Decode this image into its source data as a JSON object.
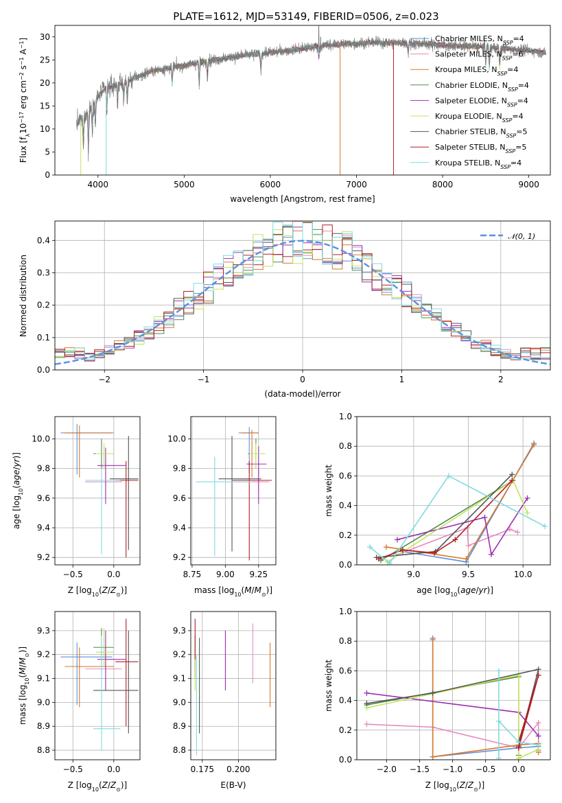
{
  "title": "PLATE=1612, MJD=53149, FIBERID=0506, z=0.023",
  "colors": {
    "Chabrier MILES": "#5f8fd6",
    "Salpeter MILES": "#e58bbd",
    "Kroupa MILES": "#d9772a",
    "Chabrier ELODIE": "#4e8b4e",
    "Salpeter ELODIE": "#9b30b0",
    "Kroupa ELODIE": "#c2e35a",
    "Chabrier STELIB": "#555555",
    "Salpeter STELIB": "#b01e23",
    "Kroupa STELIB": "#7fdbe0"
  },
  "chart_data": [
    {
      "type": "line",
      "panel": "spectrum",
      "xlabel": "wavelength [Angstrom, rest frame]",
      "ylabel": "Flux [f_λ 10^-17 erg cm^-2 s^-1 A^-1]",
      "xlim": [
        3500,
        9250
      ],
      "ylim": [
        0,
        32.5
      ],
      "xticks": [
        "4000",
        "5000",
        "6000",
        "7000",
        "8000",
        "9000"
      ],
      "yticks": [
        "0",
        "5",
        "10",
        "15",
        "20",
        "25",
        "30"
      ],
      "legend_position": "right",
      "legend": [
        {
          "name": "Chabrier MILES",
          "nssp": "4"
        },
        {
          "name": "Salpeter MILES",
          "nssp": "6"
        },
        {
          "name": "Kroupa MILES",
          "nssp": "4"
        },
        {
          "name": "Chabrier ELODIE",
          "nssp": "4"
        },
        {
          "name": "Salpeter ELODIE",
          "nssp": "4"
        },
        {
          "name": "Kroupa ELODIE",
          "nssp": "4"
        },
        {
          "name": "Chabrier STELIB",
          "nssp": "5"
        },
        {
          "name": "Salpeter STELIB",
          "nssp": "5"
        },
        {
          "name": "Kroupa STELIB",
          "nssp": "4"
        }
      ],
      "continuum": [
        [
          3750,
          11
        ],
        [
          3900,
          14
        ],
        [
          4000,
          17
        ],
        [
          4100,
          19
        ],
        [
          4300,
          20
        ],
        [
          4600,
          22.5
        ],
        [
          4900,
          23.5
        ],
        [
          5200,
          24.5
        ],
        [
          5500,
          25.5
        ],
        [
          5800,
          26.2
        ],
        [
          6100,
          26.8
        ],
        [
          6400,
          27.5
        ],
        [
          6650,
          28.2
        ],
        [
          6900,
          28.5
        ],
        [
          7200,
          28.8
        ],
        [
          7500,
          28.7
        ],
        [
          7800,
          28.5
        ],
        [
          8100,
          28.1
        ],
        [
          8400,
          27.9
        ],
        [
          8700,
          27.5
        ],
        [
          9000,
          27
        ],
        [
          9200,
          26.5
        ]
      ],
      "dips": [
        [
          3830,
          5
        ],
        [
          3889,
          4
        ],
        [
          3934,
          9
        ],
        [
          3970,
          10
        ],
        [
          4102,
          13
        ],
        [
          4227,
          15
        ],
        [
          4300,
          16
        ],
        [
          4340,
          15
        ],
        [
          4861,
          19
        ],
        [
          5175,
          19
        ],
        [
          5270,
          21
        ],
        [
          5890,
          22
        ],
        [
          6563,
          25
        ],
        [
          7600,
          26
        ],
        [
          8500,
          23.5
        ],
        [
          8542,
          22.5
        ],
        [
          8662,
          23
        ]
      ],
      "spikes": [
        [
          6563,
          32.5
        ],
        [
          6583,
          30
        ]
      ],
      "drops": [
        [
          3800,
          0
        ],
        [
          4095,
          0
        ],
        [
          6810,
          0
        ],
        [
          7430,
          0
        ]
      ]
    },
    {
      "type": "line",
      "panel": "residual-distribution",
      "xlabel": "(data-model)/error",
      "ylabel": "Normed distribution",
      "xlim": [
        -2.5,
        2.5
      ],
      "ylim": [
        0,
        0.46
      ],
      "xticks": [
        "−2",
        "−1",
        "0",
        "1",
        "2"
      ],
      "yticks": [
        "0.0",
        "0.1",
        "0.2",
        "0.3",
        "0.4"
      ],
      "legend_position": "top-right",
      "gaussian_label": "𝒩(0, 1)",
      "bin_width": 0.1
    },
    {
      "type": "scatter",
      "panel": "age-vs-Z",
      "xlabel": "Z [log10(Z/Z⊙)]",
      "ylabel": "age [log10(age/yr)]",
      "xlim": [
        -0.72,
        0.32
      ],
      "ylim": [
        9.15,
        10.15
      ],
      "xticks": [
        "−0.5",
        "0.0"
      ],
      "yticks": [
        "9.2",
        "9.4",
        "9.6",
        "9.8",
        "10.0"
      ],
      "points": [
        {
          "model": "Chabrier MILES",
          "x": -0.45,
          "y": 10.04,
          "xlo": -0.65,
          "xhi": -0.02,
          "ylo": 9.76,
          "yhi": 10.1
        },
        {
          "model": "Salpeter MILES",
          "x": -0.1,
          "y": 9.71,
          "xlo": -0.35,
          "xhi": 0.1,
          "ylo": 9.6,
          "yhi": 9.85
        },
        {
          "model": "Kroupa MILES",
          "x": -0.42,
          "y": 10.04,
          "xlo": -0.6,
          "xhi": 0.0,
          "ylo": 9.74,
          "yhi": 10.09
        },
        {
          "model": "Chabrier ELODIE",
          "x": -0.15,
          "y": 9.9,
          "xlo": -0.25,
          "xhi": 0.0,
          "ylo": 9.8,
          "yhi": 10.0
        },
        {
          "model": "Salpeter ELODIE",
          "x": -0.1,
          "y": 9.82,
          "xlo": -0.2,
          "xhi": 0.15,
          "ylo": 9.56,
          "yhi": 9.94
        },
        {
          "model": "Kroupa ELODIE",
          "x": -0.12,
          "y": 9.9,
          "xlo": -0.22,
          "xhi": 0.0,
          "ylo": 9.8,
          "yhi": 9.97
        },
        {
          "model": "Chabrier STELIB",
          "x": 0.18,
          "y": 9.73,
          "xlo": -0.05,
          "xhi": 0.3,
          "ylo": 9.25,
          "yhi": 10.02
        },
        {
          "model": "Salpeter STELIB",
          "x": 0.15,
          "y": 9.72,
          "xlo": 0.02,
          "xhi": 0.3,
          "ylo": 9.2,
          "yhi": 9.85
        },
        {
          "model": "Kroupa STELIB",
          "x": -0.15,
          "y": 9.72,
          "xlo": -0.35,
          "xhi": 0.08,
          "ylo": 9.22,
          "yhi": 9.8
        }
      ]
    },
    {
      "type": "scatter",
      "panel": "age-vs-mass",
      "xlabel": "mass [log10(M/M⊙)]",
      "ylabel": "",
      "xlim": [
        8.74,
        9.38
      ],
      "ylim": [
        9.15,
        10.15
      ],
      "xticks": [
        "8.75",
        "9.00",
        "9.25"
      ],
      "yticks": [
        "9.2",
        "9.4",
        "9.6",
        "9.8",
        "10.0"
      ],
      "points": [
        {
          "model": "Chabrier MILES",
          "x": 9.18,
          "y": 10.04,
          "xlo": 9.1,
          "xhi": 9.25,
          "ylo": 9.77,
          "yhi": 10.08
        },
        {
          "model": "Salpeter MILES",
          "x": 9.25,
          "y": 9.71,
          "xlo": 9.08,
          "xhi": 9.33,
          "ylo": 9.65,
          "yhi": 9.8
        },
        {
          "model": "Kroupa MILES",
          "x": 9.2,
          "y": 10.04,
          "xlo": 9.12,
          "xhi": 9.25,
          "ylo": 9.74,
          "yhi": 10.06
        },
        {
          "model": "Chabrier ELODIE",
          "x": 9.23,
          "y": 9.9,
          "xlo": 9.17,
          "xhi": 9.3,
          "ylo": 9.8,
          "yhi": 10.0
        },
        {
          "model": "Salpeter ELODIE",
          "x": 9.25,
          "y": 9.83,
          "xlo": 9.16,
          "xhi": 9.31,
          "ylo": 9.56,
          "yhi": 9.95
        },
        {
          "model": "Kroupa ELODIE",
          "x": 9.23,
          "y": 9.9,
          "xlo": 9.18,
          "xhi": 9.3,
          "ylo": 9.8,
          "yhi": 9.97
        },
        {
          "model": "Chabrier STELIB",
          "x": 9.05,
          "y": 9.73,
          "xlo": 8.95,
          "xhi": 9.27,
          "ylo": 9.24,
          "yhi": 10.02
        },
        {
          "model": "Salpeter STELIB",
          "x": 9.18,
          "y": 9.72,
          "xlo": 9.05,
          "xhi": 9.35,
          "ylo": 9.18,
          "yhi": 9.85
        },
        {
          "model": "Kroupa STELIB",
          "x": 8.92,
          "y": 9.71,
          "xlo": 8.78,
          "xhi": 9.2,
          "ylo": 9.21,
          "yhi": 9.88
        }
      ]
    },
    {
      "type": "line",
      "panel": "mass-weight-vs-age",
      "xlabel": "age [log10(age/yr)]",
      "ylabel": "mass weight",
      "xlim": [
        8.48,
        10.25
      ],
      "ylim": [
        0,
        1.0
      ],
      "xticks": [
        "9.0",
        "9.5",
        "10.0"
      ],
      "yticks": [
        "0.0",
        "0.2",
        "0.4",
        "0.6",
        "0.8",
        "1.0"
      ],
      "series": [
        {
          "model": "Chabrier MILES",
          "points": [
            [
              8.9,
              0.09
            ],
            [
              9.48,
              0.02
            ],
            [
              10.1,
              0.82
            ]
          ]
        },
        {
          "model": "Salpeter MILES",
          "points": [
            [
              8.82,
              0.06
            ],
            [
              9.49,
              0.25
            ],
            [
              9.5,
              0.13
            ],
            [
              9.88,
              0.24
            ],
            [
              9.95,
              0.22
            ]
          ]
        },
        {
          "model": "Kroupa MILES",
          "points": [
            [
              8.75,
              0.12
            ],
            [
              9.48,
              0.04
            ],
            [
              10.1,
              0.81
            ]
          ]
        },
        {
          "model": "Chabrier ELODIE",
          "points": [
            [
              8.7,
              0.03
            ],
            [
              9.91,
              0.57
            ]
          ]
        },
        {
          "model": "Salpeter ELODIE",
          "points": [
            [
              8.85,
              0.17
            ],
            [
              9.65,
              0.32
            ],
            [
              9.71,
              0.07
            ],
            [
              10.04,
              0.45
            ]
          ]
        },
        {
          "model": "Kroupa ELODIE",
          "points": [
            [
              8.76,
              0.02
            ],
            [
              9.91,
              0.57
            ],
            [
              10.04,
              0.35
            ]
          ]
        },
        {
          "model": "Chabrier STELIB",
          "points": [
            [
              8.66,
              0.05
            ],
            [
              9.2,
              0.09
            ],
            [
              9.9,
              0.61
            ]
          ]
        },
        {
          "model": "Salpeter STELIB",
          "points": [
            [
              8.68,
              0.04
            ],
            [
              8.9,
              0.1
            ],
            [
              9.19,
              0.08
            ],
            [
              9.38,
              0.17
            ],
            [
              9.9,
              0.57
            ]
          ]
        },
        {
          "model": "Kroupa STELIB",
          "points": [
            [
              8.6,
              0.12
            ],
            [
              8.78,
              0.01
            ],
            [
              9.32,
              0.6
            ],
            [
              10.2,
              0.26
            ]
          ]
        }
      ]
    },
    {
      "type": "scatter",
      "panel": "mass-vs-Z",
      "xlabel": "Z [log10(Z/Z⊙)]",
      "ylabel": "mass [log10(M/M⊙)]",
      "xlim": [
        -0.72,
        0.32
      ],
      "ylim": [
        8.76,
        9.38
      ],
      "xticks": [
        "−0.5",
        "0.0"
      ],
      "yticks": [
        "8.8",
        "8.9",
        "9.0",
        "9.1",
        "9.2",
        "9.3"
      ],
      "points": [
        {
          "model": "Chabrier MILES",
          "x": -0.45,
          "y": 9.19,
          "xlo": -0.65,
          "xhi": -0.02,
          "ylo": 8.99,
          "yhi": 9.25
        },
        {
          "model": "Salpeter MILES",
          "x": -0.1,
          "y": 9.14,
          "xlo": -0.35,
          "xhi": 0.1,
          "ylo": 9.05,
          "yhi": 9.23
        },
        {
          "model": "Kroupa MILES",
          "x": -0.42,
          "y": 9.15,
          "xlo": -0.6,
          "xhi": 0.0,
          "ylo": 8.98,
          "yhi": 9.23
        },
        {
          "model": "Chabrier ELODIE",
          "x": -0.15,
          "y": 9.23,
          "xlo": -0.25,
          "xhi": 0.0,
          "ylo": 9.15,
          "yhi": 9.31
        },
        {
          "model": "Salpeter ELODIE",
          "x": -0.1,
          "y": 9.18,
          "xlo": -0.2,
          "xhi": 0.15,
          "ylo": 9.05,
          "yhi": 9.3
        },
        {
          "model": "Kroupa ELODIE",
          "x": -0.12,
          "y": 9.21,
          "xlo": -0.22,
          "xhi": 0.0,
          "ylo": 9.15,
          "yhi": 9.31
        },
        {
          "model": "Chabrier STELIB",
          "x": 0.18,
          "y": 9.05,
          "xlo": -0.25,
          "xhi": 0.3,
          "ylo": 8.87,
          "yhi": 9.3
        },
        {
          "model": "Salpeter STELIB",
          "x": 0.15,
          "y": 9.17,
          "xlo": 0.02,
          "xhi": 0.3,
          "ylo": 8.9,
          "yhi": 9.35
        },
        {
          "model": "Kroupa STELIB",
          "x": -0.15,
          "y": 8.89,
          "xlo": -0.25,
          "xhi": 0.08,
          "ylo": 8.8,
          "yhi": 9.28
        }
      ]
    },
    {
      "type": "scatter",
      "panel": "mass-vs-EBV",
      "xlabel": "E(B-V)",
      "ylabel": "",
      "xlim": [
        0.167,
        0.226
      ],
      "ylim": [
        8.76,
        9.38
      ],
      "xticks": [
        "0.175",
        "0.200"
      ],
      "yticks": [
        "8.8",
        "8.9",
        "9.0",
        "9.1",
        "9.2",
        "9.3"
      ],
      "points": [
        {
          "model": "Chabrier MILES",
          "x": 0.17,
          "y": 9.2,
          "ylo": 9.15,
          "yhi": 9.25
        },
        {
          "model": "Salpeter MILES",
          "x": 0.21,
          "y": 9.2,
          "ylo": 9.08,
          "yhi": 9.33
        },
        {
          "model": "Kroupa MILES",
          "x": 0.222,
          "y": 9.1,
          "ylo": 8.98,
          "yhi": 9.25
        },
        {
          "model": "Chabrier ELODIE",
          "x": 0.17,
          "y": 9.2,
          "ylo": 9.1,
          "yhi": 9.28
        },
        {
          "model": "Salpeter ELODIE",
          "x": 0.191,
          "y": 9.18,
          "ylo": 9.05,
          "yhi": 9.3
        },
        {
          "model": "Kroupa ELODIE",
          "x": 0.17,
          "y": 9.15,
          "ylo": 9.05,
          "yhi": 9.25
        },
        {
          "model": "Chabrier STELIB",
          "x": 0.173,
          "y": 9.05,
          "ylo": 8.87,
          "yhi": 9.27
        },
        {
          "model": "Salpeter STELIB",
          "x": 0.17,
          "y": 9.25,
          "ylo": 9.18,
          "yhi": 9.35
        },
        {
          "model": "Kroupa STELIB",
          "x": 0.171,
          "y": 8.95,
          "ylo": 8.78,
          "yhi": 9.2
        }
      ]
    },
    {
      "type": "line",
      "panel": "mass-weight-vs-Z",
      "xlabel": "Z [log10(Z/Z⊙)]",
      "ylabel": "mass weight",
      "xlim": [
        -2.45,
        0.48
      ],
      "ylim": [
        0,
        1.0
      ],
      "xticks": [
        "−2.0",
        "−1.5",
        "−1.0",
        "−0.5",
        "0.0"
      ],
      "yticks": [
        "0.0",
        "0.2",
        "0.4",
        "0.6",
        "0.8",
        "1.0"
      ],
      "series": [
        {
          "model": "Chabrier MILES",
          "points": [
            [
              -1.3,
              0.82
            ],
            [
              -1.3,
              0.02
            ],
            [
              0.0,
              0.08
            ],
            [
              0.3,
              0.09
            ]
          ]
        },
        {
          "model": "Salpeter MILES",
          "points": [
            [
              -2.3,
              0.24
            ],
            [
              -1.3,
              0.22
            ],
            [
              0.0,
              0.08
            ],
            [
              0.3,
              0.25
            ],
            [
              0.3,
              0.06
            ]
          ]
        },
        {
          "model": "Kroupa MILES",
          "points": [
            [
              -1.3,
              0.81
            ],
            [
              -1.3,
              0.02
            ],
            [
              0.0,
              0.1
            ],
            [
              0.3,
              0.11
            ],
            [
              0.3,
              0.05
            ]
          ]
        },
        {
          "model": "Chabrier ELODIE",
          "points": [
            [
              -2.3,
              0.37
            ],
            [
              0.0,
              0.56
            ],
            [
              0.0,
              0.03
            ]
          ]
        },
        {
          "model": "Salpeter ELODIE",
          "points": [
            [
              -2.3,
              0.45
            ],
            [
              0.0,
              0.32
            ],
            [
              0.3,
              0.16
            ]
          ]
        },
        {
          "model": "Kroupa ELODIE",
          "points": [
            [
              -2.3,
              0.35
            ],
            [
              0.0,
              0.57
            ],
            [
              0.0,
              0.01
            ],
            [
              0.3,
              0.07
            ]
          ]
        },
        {
          "model": "Chabrier STELIB",
          "points": [
            [
              -2.3,
              0.38
            ],
            [
              -1.3,
              0.45
            ],
            [
              0.3,
              0.61
            ],
            [
              0.0,
              0.09
            ]
          ]
        },
        {
          "model": "Salpeter STELIB",
          "points": [
            [
              0.0,
              0.12
            ],
            [
              0.3,
              0.57
            ],
            [
              0.0,
              0.08
            ]
          ]
        },
        {
          "model": "Kroupa STELIB",
          "points": [
            [
              -0.3,
              0.6
            ],
            [
              -0.3,
              0.01
            ],
            [
              -0.3,
              0.26
            ],
            [
              0.0,
              0.12
            ],
            [
              0.3,
              0.1
            ]
          ]
        }
      ]
    }
  ]
}
